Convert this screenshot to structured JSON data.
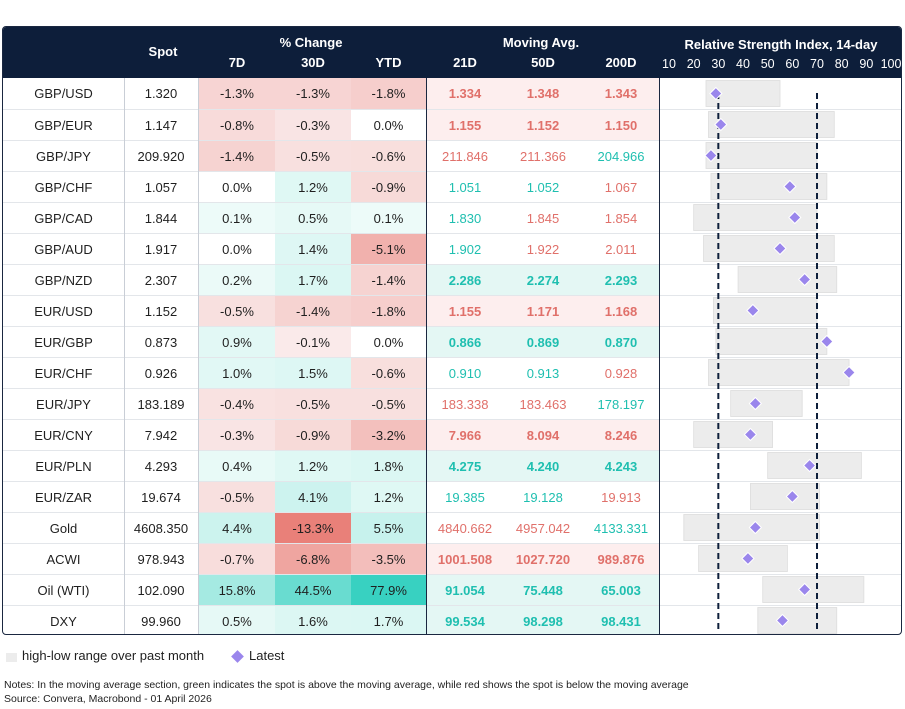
{
  "header": {
    "spot": "Spot",
    "pct_change": "% Change",
    "moving_avg": "Moving Avg.",
    "rsi_title": "Relative Strength Index, 14-day",
    "sub_7d": "7D",
    "sub_30d": "30D",
    "sub_ytd": "YTD",
    "sub_21d": "21D",
    "sub_50d": "50D",
    "sub_200d": "200D"
  },
  "colors": {
    "header_bg": "#0d1e3a",
    "red_text": "#e0706a",
    "teal_text": "#1fbfb0",
    "diamond": "#9a86ec",
    "range_bar": "#ececec"
  },
  "chart_data": {
    "type": "table",
    "rsi_axis": {
      "ticks": [
        10,
        20,
        30,
        40,
        50,
        60,
        70,
        80,
        90,
        100
      ],
      "range": [
        10,
        100
      ],
      "reference_lines": [
        30,
        70
      ]
    },
    "rows": [
      {
        "pair": "GBP/USD",
        "spot": "1.320",
        "c7": "-1.3%",
        "c30": "-1.3%",
        "cytd": "-1.8%",
        "m21": "1.334",
        "m50": "1.348",
        "m200": "1.343",
        "ma_signal": "below",
        "ma_bold": true,
        "rsi_low": 25,
        "rsi_high": 55,
        "rsi": 29
      },
      {
        "pair": "GBP/EUR",
        "spot": "1.147",
        "c7": "-0.8%",
        "c30": "-0.3%",
        "cytd": "0.0%",
        "m21": "1.155",
        "m50": "1.152",
        "m200": "1.150",
        "ma_signal": "below",
        "ma_bold": true,
        "rsi_low": 26,
        "rsi_high": 77,
        "rsi": 31
      },
      {
        "pair": "GBP/JPY",
        "spot": "209.920",
        "c7": "-1.4%",
        "c30": "-0.5%",
        "cytd": "-0.6%",
        "m21": "211.846",
        "m50": "211.366",
        "m200": "204.966",
        "ma_signal": "mixed",
        "ma_bold": false,
        "ma_colors": [
          "red",
          "red",
          "teal"
        ],
        "rsi_low": 25,
        "rsi_high": 70,
        "rsi": 27
      },
      {
        "pair": "GBP/CHF",
        "spot": "1.057",
        "c7": "0.0%",
        "c30": "1.2%",
        "cytd": "-0.9%",
        "m21": "1.051",
        "m50": "1.052",
        "m200": "1.067",
        "ma_signal": "mixed",
        "ma_bold": false,
        "ma_colors": [
          "teal",
          "teal",
          "red"
        ],
        "rsi_low": 27,
        "rsi_high": 74,
        "rsi": 59
      },
      {
        "pair": "GBP/CAD",
        "spot": "1.844",
        "c7": "0.1%",
        "c30": "0.5%",
        "cytd": "0.1%",
        "m21": "1.830",
        "m50": "1.845",
        "m200": "1.854",
        "ma_signal": "mixed",
        "ma_bold": false,
        "ma_colors": [
          "teal",
          "red",
          "red"
        ],
        "rsi_low": 20,
        "rsi_high": 70,
        "rsi": 61
      },
      {
        "pair": "GBP/AUD",
        "spot": "1.917",
        "c7": "0.0%",
        "c30": "1.4%",
        "cytd": "-5.1%",
        "m21": "1.902",
        "m50": "1.922",
        "m200": "2.011",
        "ma_signal": "mixed",
        "ma_bold": false,
        "ma_colors": [
          "teal",
          "red",
          "red"
        ],
        "rsi_low": 24,
        "rsi_high": 77,
        "rsi": 55
      },
      {
        "pair": "GBP/NZD",
        "spot": "2.307",
        "c7": "0.2%",
        "c30": "1.7%",
        "cytd": "-1.4%",
        "m21": "2.286",
        "m50": "2.274",
        "m200": "2.293",
        "ma_signal": "above",
        "ma_bold": true,
        "rsi_low": 38,
        "rsi_high": 78,
        "rsi": 65
      },
      {
        "pair": "EUR/USD",
        "spot": "1.152",
        "c7": "-0.5%",
        "c30": "-1.4%",
        "cytd": "-1.8%",
        "m21": "1.155",
        "m50": "1.171",
        "m200": "1.168",
        "ma_signal": "below",
        "ma_bold": true,
        "rsi_low": 28,
        "rsi_high": 70,
        "rsi": 44
      },
      {
        "pair": "EUR/GBP",
        "spot": "0.873",
        "c7": "0.9%",
        "c30": "-0.1%",
        "cytd": "0.0%",
        "m21": "0.866",
        "m50": "0.869",
        "m200": "0.870",
        "ma_signal": "above",
        "ma_bold": true,
        "rsi_low": 29,
        "rsi_high": 74,
        "rsi": 74
      },
      {
        "pair": "EUR/CHF",
        "spot": "0.926",
        "c7": "1.0%",
        "c30": "1.5%",
        "cytd": "-0.6%",
        "m21": "0.910",
        "m50": "0.913",
        "m200": "0.928",
        "ma_signal": "mixed",
        "ma_bold": false,
        "ma_colors": [
          "teal",
          "teal",
          "red"
        ],
        "rsi_low": 26,
        "rsi_high": 83,
        "rsi": 83
      },
      {
        "pair": "EUR/JPY",
        "spot": "183.189",
        "c7": "-0.4%",
        "c30": "-0.5%",
        "cytd": "-0.5%",
        "m21": "183.338",
        "m50": "183.463",
        "m200": "178.197",
        "ma_signal": "mixed",
        "ma_bold": false,
        "ma_colors": [
          "red",
          "red",
          "teal"
        ],
        "rsi_low": 35,
        "rsi_high": 64,
        "rsi": 45
      },
      {
        "pair": "EUR/CNY",
        "spot": "7.942",
        "c7": "-0.3%",
        "c30": "-0.9%",
        "cytd": "-3.2%",
        "m21": "7.966",
        "m50": "8.094",
        "m200": "8.246",
        "ma_signal": "below",
        "ma_bold": true,
        "rsi_low": 20,
        "rsi_high": 52,
        "rsi": 43
      },
      {
        "pair": "EUR/PLN",
        "spot": "4.293",
        "c7": "0.4%",
        "c30": "1.2%",
        "cytd": "1.8%",
        "m21": "4.275",
        "m50": "4.240",
        "m200": "4.243",
        "ma_signal": "above",
        "ma_bold": true,
        "rsi_low": 50,
        "rsi_high": 88,
        "rsi": 67
      },
      {
        "pair": "EUR/ZAR",
        "spot": "19.674",
        "c7": "-0.5%",
        "c30": "4.1%",
        "cytd": "1.2%",
        "m21": "19.385",
        "m50": "19.128",
        "m200": "19.913",
        "ma_signal": "mixed",
        "ma_bold": false,
        "ma_colors": [
          "teal",
          "teal",
          "red"
        ],
        "rsi_low": 43,
        "rsi_high": 71,
        "rsi": 60
      },
      {
        "pair": "Gold",
        "spot": "4608.350",
        "c7": "4.4%",
        "c30": "-13.3%",
        "cytd": "5.5%",
        "m21": "4840.662",
        "m50": "4957.042",
        "m200": "4133.331",
        "ma_signal": "mixed",
        "ma_bold": false,
        "ma_colors": [
          "red",
          "red",
          "teal"
        ],
        "rsi_low": 16,
        "rsi_high": 71,
        "rsi": 45
      },
      {
        "pair": "ACWI",
        "spot": "978.943",
        "c7": "-0.7%",
        "c30": "-6.8%",
        "cytd": "-3.5%",
        "m21": "1001.508",
        "m50": "1027.720",
        "m200": "989.876",
        "ma_signal": "below",
        "ma_bold": true,
        "rsi_low": 22,
        "rsi_high": 58,
        "rsi": 42
      },
      {
        "pair": "Oil (WTI)",
        "spot": "102.090",
        "c7": "15.8%",
        "c30": "44.5%",
        "cytd": "77.9%",
        "m21": "91.054",
        "m50": "75.448",
        "m200": "65.003",
        "ma_signal": "above",
        "ma_bold": true,
        "rsi_low": 48,
        "rsi_high": 89,
        "rsi": 65
      },
      {
        "pair": "DXY",
        "spot": "99.960",
        "c7": "0.5%",
        "c30": "1.6%",
        "cytd": "1.7%",
        "m21": "99.534",
        "m50": "98.298",
        "m200": "98.431",
        "ma_signal": "above",
        "ma_bold": true,
        "rsi_low": 46,
        "rsi_high": 78,
        "rsi": 56
      }
    ]
  },
  "legend": {
    "range_label": "high-low range over past month",
    "latest_label": "Latest"
  },
  "notes": {
    "line1": "Notes: In the moving average section, green indicates the spot is above the moving average, while red shows the spot is below the moving average",
    "line2": "Source: Convera, Macrobond - 01 April 2026"
  }
}
